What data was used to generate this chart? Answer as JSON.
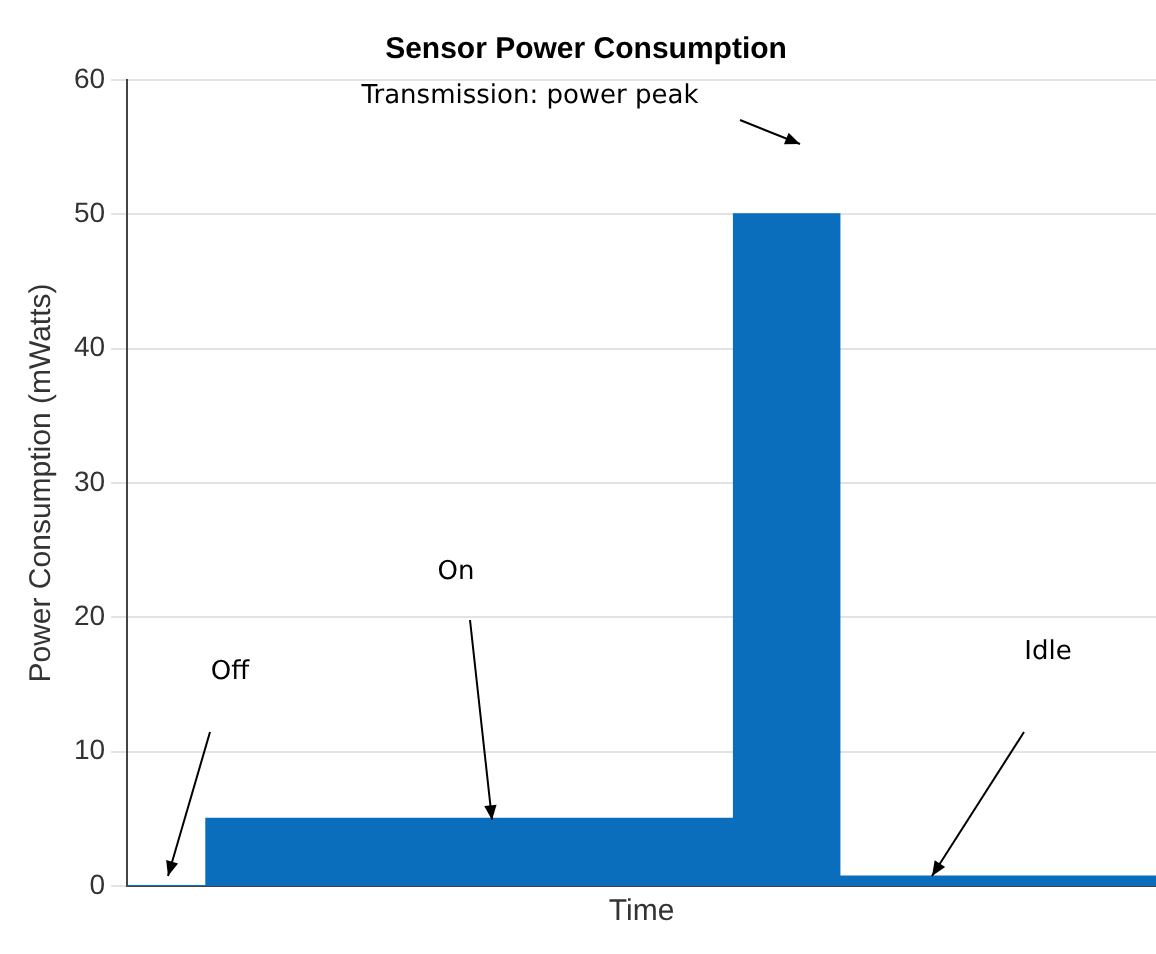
{
  "chart_data": {
    "type": "area",
    "title": "Sensor Power Consumption",
    "xlabel": "Time",
    "ylabel": "Power Consumption (mWatts)",
    "categories": [
      null,
      null,
      null,
      null,
      null,
      null,
      null,
      null,
      null,
      null,
      null,
      null,
      null,
      null,
      null,
      null,
      null,
      null,
      null,
      null,
      null,
      null,
      null,
      null,
      null,
      null,
      null,
      null,
      null,
      null,
      null,
      null,
      null,
      null,
      null,
      null,
      null,
      null,
      null,
      null
    ],
    "values": [
      0,
      0,
      0,
      0,
      5,
      5,
      5,
      5,
      5,
      5,
      5,
      5,
      5,
      5,
      5,
      5,
      5,
      5,
      5,
      5,
      5,
      5,
      5,
      5,
      50,
      50,
      50,
      50,
      0.7,
      0.7,
      0.7,
      0.7,
      0.7,
      0.7,
      0.7,
      0.7,
      0.7,
      0.7,
      0.7,
      0.7
    ],
    "color": "#0a6ebd",
    "ylim": [
      0,
      60
    ],
    "yticks": [
      0,
      10,
      20,
      30,
      40,
      50,
      60
    ],
    "grid": "y",
    "tick_labels": "y",
    "annotations": [
      "Transmission: power peak",
      "On",
      "Off",
      "Idle"
    ]
  }
}
